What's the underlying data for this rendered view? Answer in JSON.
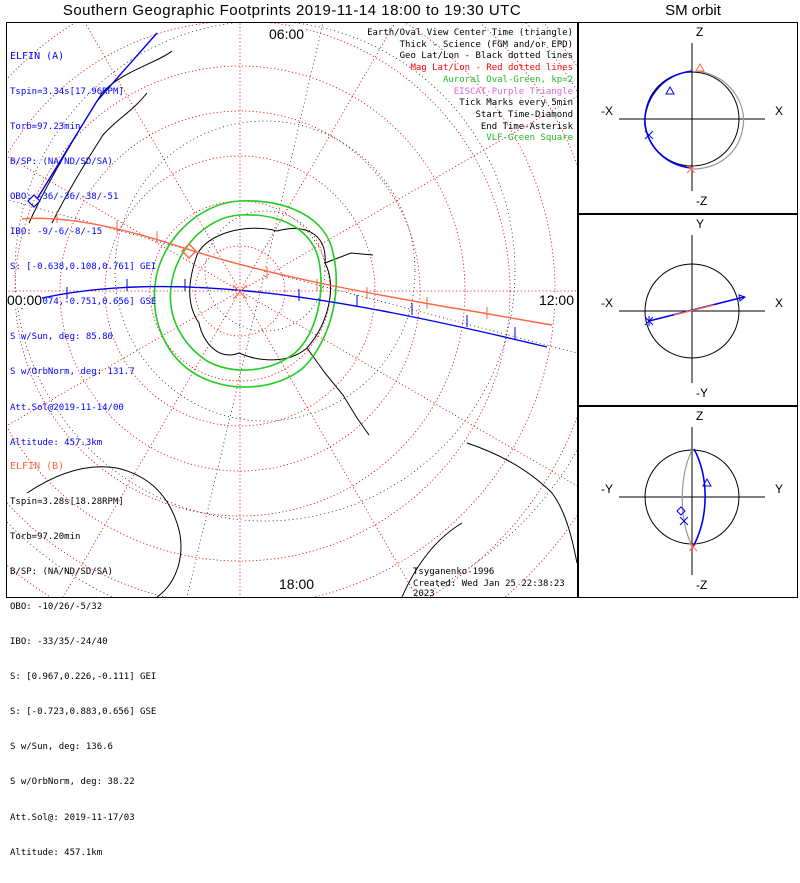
{
  "title": "Southern Geographic Footprints 2019-11-14 18:00 to 19:30 UTC",
  "orbit_title": "SM orbit",
  "elfin_a": {
    "name": "ELFIN (A)",
    "color": "#0000ff",
    "lines": [
      "Tspin=3.34s[17.96RPM]",
      "Torb=97.23min",
      "B/SP: (NA/ND/SD/SA)",
      "OBO: -36/-36/-38/-51",
      "IBO: -9/-6/-8/-15",
      "S: [-0.638,0.108,0.761] GEI",
      "S: [0.074,-0.751,0.656] GSE",
      "S w/Sun, deg: 85.80",
      "S w/OrbNorm, deg: 131.7",
      "Att.Sol@2019-11-14/00",
      "Altitude: 457.3km"
    ]
  },
  "elfin_b": {
    "name": "ELFIN (B)",
    "color": "#ff6644",
    "lines": [
      "Tspin=3.28s[18.28RPM]",
      "Torb=97.20min",
      "B/SP: (NA/ND/SD/SA)",
      "OBO: -10/26/-5/32",
      "IBO: -33/35/-24/40",
      "S: [0.967,0.226,-0.111] GEI",
      "S: [-0.723,0.883,0.656] GSE",
      "S w/Sun, deg: 136.6",
      "S w/OrbNorm, deg: 38.22",
      "Att.Sol@: 2019-11-17/03",
      "Altitude: 457.1km"
    ]
  },
  "legend": [
    {
      "text": "Earth/Oval View Center Time (triangle)",
      "color": "#000000"
    },
    {
      "text": "Thick - Science (FGM and/or EPD)",
      "color": "#000000"
    },
    {
      "text": "Geo Lat/Lon - Black dotted lines",
      "color": "#000000"
    },
    {
      "text": "Mag Lat/Lon - Red dotted lines",
      "color": "#ff0000"
    },
    {
      "text": "Auroral Oval-Green, kp=2",
      "color": "#22bb22"
    },
    {
      "text": "EISCAT-Purple Triangle",
      "color": "#dd66dd"
    },
    {
      "text": "Tick Marks every 5min",
      "color": "#000000"
    },
    {
      "text": "Start Time-Diamond",
      "color": "#000000"
    },
    {
      "text": "End Time-Asterisk",
      "color": "#000000"
    },
    {
      "text": "VLF-Green Square",
      "color": "#22bb22"
    }
  ],
  "mlt_labels": {
    "top": "06:00",
    "left": "00:00",
    "right": "12:00",
    "bottom": "18:00"
  },
  "credits": {
    "model": "Tsyganenko-1996",
    "created": "Created: Wed Jan 25 22:38:23 2023"
  },
  "orbit_panels": [
    {
      "name": "xz",
      "top": "Z",
      "bottom": "-Z",
      "left": "-X",
      "right": "X"
    },
    {
      "name": "xy",
      "top": "Y",
      "bottom": "-Y",
      "left": "-X",
      "right": "X"
    },
    {
      "name": "yz",
      "top": "Z",
      "bottom": "-Z",
      "left": "-Y",
      "right": "Y"
    }
  ],
  "colors": {
    "mag_grid": "#dd0000",
    "geo_grid": "#000000",
    "aurora": "#22cc22",
    "coast": "#000000"
  }
}
